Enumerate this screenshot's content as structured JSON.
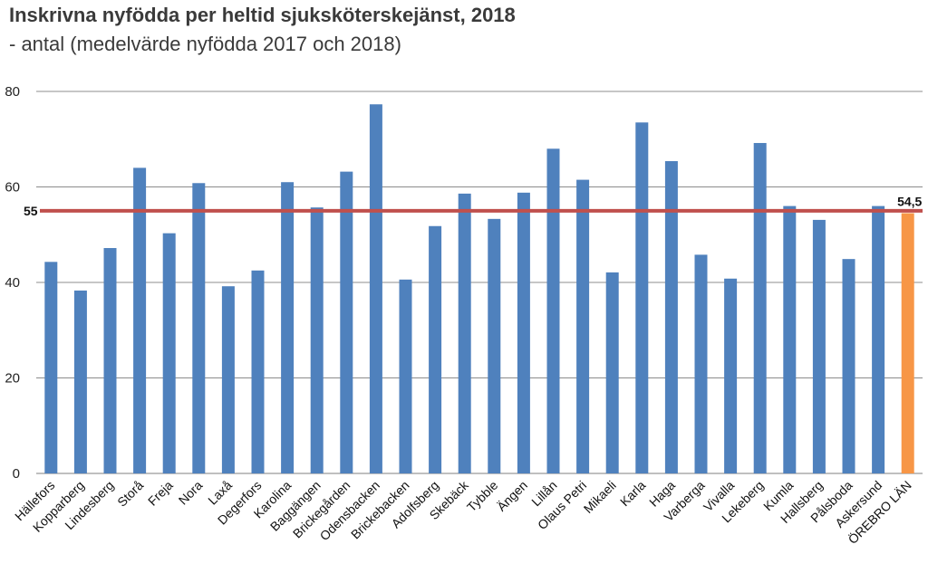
{
  "chart_data": {
    "type": "bar",
    "title": "Inskrivna nyfödda per heltid sjuksköterskejänst, 2018",
    "subtitle": "- antal (medelvärde nyfödda 2017 och 2018)",
    "xlabel": "",
    "ylabel": "",
    "ylim": [
      0,
      80
    ],
    "yticks": [
      0,
      20,
      40,
      60,
      80
    ],
    "categories": [
      "Hällefors",
      "Kopparberg",
      "Lindesberg",
      "Storå",
      "Freja",
      "Nora",
      "Laxå",
      "Degerfors",
      "Karolina",
      "Baggängen",
      "Brickegården",
      "Odensbacken",
      "Brickebacken",
      "Adolfsberg",
      "Skebäck",
      "Tybble",
      "Ängen",
      "Lillån",
      "Olaus Petri",
      "Mikaeli",
      "Karla",
      "Haga",
      "Varberga",
      "Vivalla",
      "Lekeberg",
      "Kumla",
      "Hallsberg",
      "Pålsboda",
      "Askersund",
      "ÖREBRO LÄN"
    ],
    "values": [
      44.3,
      38.3,
      47.2,
      64.0,
      50.3,
      60.8,
      39.2,
      42.5,
      61.0,
      55.7,
      63.2,
      77.3,
      40.6,
      51.8,
      58.6,
      53.3,
      58.8,
      68.0,
      61.5,
      42.1,
      73.5,
      65.4,
      45.8,
      40.8,
      69.2,
      56.0,
      53.1,
      44.9,
      56.0,
      54.5
    ],
    "highlight_index": 29,
    "highlight_label": "54,5",
    "reference_line": {
      "value": 55,
      "label": "55"
    },
    "colors": {
      "bar": "#4f81bd",
      "highlight": "#f79646",
      "reference": "#c0504d",
      "grid": "#8c8c8c"
    },
    "grid": true
  }
}
